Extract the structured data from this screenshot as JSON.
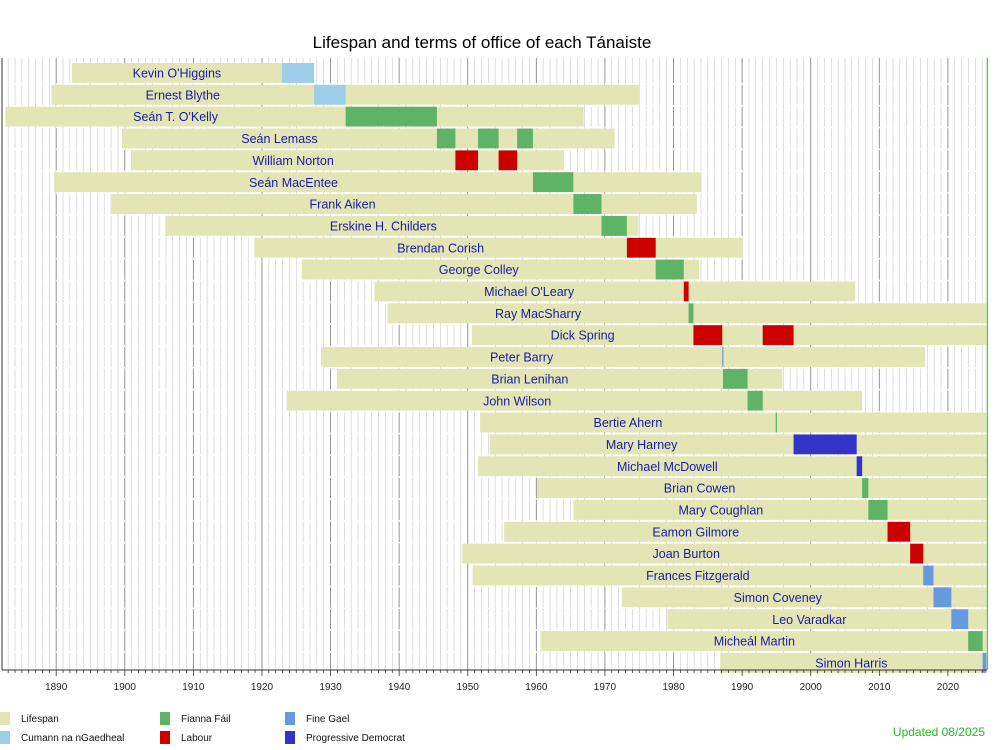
{
  "chart_data": {
    "type": "timeline",
    "title": "Lifespan and terms of office of each Tánaiste",
    "xlim": [
      1882.1,
      2025.7
    ],
    "xticks": [
      1890,
      1900,
      1910,
      1920,
      1930,
      1940,
      1950,
      1960,
      1970,
      1980,
      1990,
      2000,
      2010,
      2020
    ],
    "grid": true,
    "current_date": 2025.6,
    "colors": {
      "Lifespan": "#e3e6b4",
      "Cumann na nGaedheal": "#9dcde8",
      "Fianna Fáil": "#5fb366",
      "Labour": "#cc0000",
      "Fine Gael": "#6699e0",
      "Progressive Democrat": "#3333cc"
    },
    "legend": [
      "Lifespan",
      "Cumann na nGaedheal",
      "Fianna Fáil",
      "Labour",
      "Fine Gael",
      "Progressive Democrat"
    ],
    "rows": [
      {
        "name": "Kevin O'Higgins",
        "born": 1892.3,
        "died": 1927.6,
        "terms": [
          {
            "party": "Cumann na nGaedheal",
            "start": 1922.9,
            "end": 1927.6
          }
        ]
      },
      {
        "name": "Ernest Blythe",
        "born": 1889.3,
        "died": 1975.1,
        "terms": [
          {
            "party": "Cumann na nGaedheal",
            "start": 1927.6,
            "end": 1932.2
          }
        ]
      },
      {
        "name": "Seán T. O'Kelly",
        "born": 1882.6,
        "died": 1966.9,
        "terms": [
          {
            "party": "Fianna Fáil",
            "start": 1932.2,
            "end": 1945.5
          }
        ]
      },
      {
        "name": "Seán Lemass",
        "born": 1899.6,
        "died": 1971.4,
        "terms": [
          {
            "party": "Fianna Fáil",
            "start": 1945.5,
            "end": 1948.2
          },
          {
            "party": "Fianna Fáil",
            "start": 1951.5,
            "end": 1954.5
          },
          {
            "party": "Fianna Fáil",
            "start": 1957.2,
            "end": 1959.5
          }
        ]
      },
      {
        "name": "William Norton",
        "born": 1900.9,
        "died": 1963.9,
        "terms": [
          {
            "party": "Labour",
            "start": 1948.2,
            "end": 1951.5
          },
          {
            "party": "Labour",
            "start": 1954.5,
            "end": 1957.2
          }
        ]
      },
      {
        "name": "Seán MacEntee",
        "born": 1889.7,
        "died": 1984.1,
        "terms": [
          {
            "party": "Fianna Fáil",
            "start": 1959.5,
            "end": 1965.4
          }
        ]
      },
      {
        "name": "Frank Aiken",
        "born": 1898.1,
        "died": 1983.4,
        "terms": [
          {
            "party": "Fianna Fáil",
            "start": 1965.4,
            "end": 1969.5
          }
        ]
      },
      {
        "name": "Erskine H. Childers",
        "born": 1905.9,
        "died": 1974.9,
        "terms": [
          {
            "party": "Fianna Fáil",
            "start": 1969.5,
            "end": 1973.2
          }
        ]
      },
      {
        "name": "Brendan Corish",
        "born": 1918.9,
        "died": 1990.1,
        "terms": [
          {
            "party": "Labour",
            "start": 1973.2,
            "end": 1977.4
          }
        ]
      },
      {
        "name": "George Colley",
        "born": 1925.8,
        "died": 1983.7,
        "terms": [
          {
            "party": "Fianna Fáil",
            "start": 1977.4,
            "end": 1981.5
          }
        ]
      },
      {
        "name": "Michael O'Leary",
        "born": 1936.4,
        "died": 2006.5,
        "terms": [
          {
            "party": "Labour",
            "start": 1981.5,
            "end": 1982.2
          }
        ]
      },
      {
        "name": "Ray MacSharry",
        "born": 1938.3,
        "died": null,
        "terms": [
          {
            "party": "Fianna Fáil",
            "start": 1982.2,
            "end": 1982.9
          }
        ]
      },
      {
        "name": "Dick Spring",
        "born": 1950.6,
        "died": null,
        "terms": [
          {
            "party": "Labour",
            "start": 1982.9,
            "end": 1987.1
          },
          {
            "party": "Labour",
            "start": 1993.0,
            "end": 1997.5
          }
        ]
      },
      {
        "name": "Peter Barry",
        "born": 1928.6,
        "died": 2016.7,
        "terms": [
          {
            "party": "Fine Gael",
            "start": 1987.1,
            "end": 1987.2
          }
        ]
      },
      {
        "name": "Brian Lenihan",
        "born": 1930.9,
        "died": 1995.9,
        "terms": [
          {
            "party": "Fianna Fáil",
            "start": 1987.2,
            "end": 1990.8
          }
        ]
      },
      {
        "name": "John Wilson",
        "born": 1923.6,
        "died": 2007.5,
        "terms": [
          {
            "party": "Fianna Fáil",
            "start": 1990.8,
            "end": 1993.0
          }
        ]
      },
      {
        "name": "Bertie Ahern",
        "born": 1951.8,
        "died": null,
        "terms": [
          {
            "party": "Fianna Fáil",
            "start": 1994.9,
            "end": 1995.0
          }
        ]
      },
      {
        "name": "Mary Harney",
        "born": 1953.2,
        "died": null,
        "terms": [
          {
            "party": "Progressive Democrat",
            "start": 1997.5,
            "end": 2006.7
          }
        ]
      },
      {
        "name": "Michael McDowell",
        "born": 1951.5,
        "died": null,
        "terms": [
          {
            "party": "Progressive Democrat",
            "start": 2006.7,
            "end": 2007.5
          }
        ]
      },
      {
        "name": "Brian Cowen",
        "born": 1960.1,
        "died": null,
        "terms": [
          {
            "party": "Fianna Fáil",
            "start": 2007.5,
            "end": 2008.4
          }
        ]
      },
      {
        "name": "Mary Coughlan",
        "born": 1965.4,
        "died": null,
        "terms": [
          {
            "party": "Fianna Fáil",
            "start": 2008.4,
            "end": 2011.2
          }
        ]
      },
      {
        "name": "Eamon Gilmore",
        "born": 1955.3,
        "died": null,
        "terms": [
          {
            "party": "Labour",
            "start": 2011.2,
            "end": 2014.5
          }
        ]
      },
      {
        "name": "Joan Burton",
        "born": 1949.2,
        "died": null,
        "terms": [
          {
            "party": "Labour",
            "start": 2014.5,
            "end": 2016.4
          }
        ]
      },
      {
        "name": "Frances Fitzgerald",
        "born": 1950.7,
        "died": null,
        "terms": [
          {
            "party": "Fine Gael",
            "start": 2016.4,
            "end": 2017.9
          }
        ]
      },
      {
        "name": "Simon Coveney",
        "born": 1972.5,
        "died": null,
        "terms": [
          {
            "party": "Fine Gael",
            "start": 2017.9,
            "end": 2020.5
          }
        ]
      },
      {
        "name": "Leo Varadkar",
        "born": 1979.1,
        "died": null,
        "terms": [
          {
            "party": "Fine Gael",
            "start": 2020.5,
            "end": 2022.96
          }
        ]
      },
      {
        "name": "Micheál Martin",
        "born": 1960.6,
        "died": null,
        "terms": [
          {
            "party": "Fianna Fáil",
            "start": 2022.96,
            "end": 2025.06
          }
        ]
      },
      {
        "name": "Simon Harris",
        "born": 1986.8,
        "died": null,
        "terms": [
          {
            "party": "Fine Gael",
            "start": 2025.06,
            "end": 2025.6
          }
        ]
      }
    ],
    "annotation": "Updated 08/2025"
  }
}
